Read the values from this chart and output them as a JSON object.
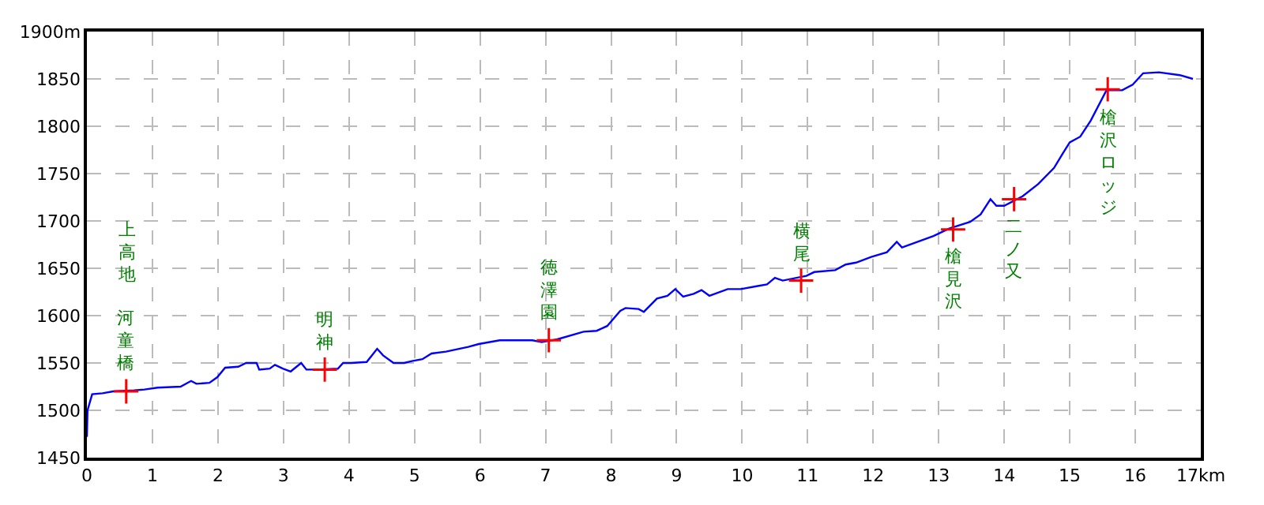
{
  "chart_data": {
    "type": "line",
    "x": [
      0,
      0.01,
      0.08,
      0.24,
      0.4,
      0.72,
      0.88,
      1.08,
      1.43,
      1.59,
      1.67,
      1.87,
      1.99,
      2.11,
      2.31,
      2.43,
      2.59,
      2.63,
      2.79,
      2.87,
      2.99,
      3.11,
      3.27,
      3.35,
      3.51,
      3.83,
      3.91,
      4.03,
      4.27,
      4.43,
      4.52,
      4.68,
      4.84,
      4.96,
      5.12,
      5.26,
      5.48,
      5.82,
      5.98,
      6.3,
      6.8,
      6.94,
      7.18,
      7.58,
      7.78,
      7.94,
      8.14,
      8.22,
      8.42,
      8.5,
      8.7,
      8.86,
      8.98,
      9.1,
      9.26,
      9.38,
      9.5,
      9.78,
      9.98,
      10.22,
      10.38,
      10.5,
      10.62,
      10.98,
      11.1,
      11.42,
      11.58,
      11.74,
      11.97,
      12.21,
      12.36,
      12.44,
      12.68,
      12.92,
      13.16,
      13.48,
      13.64,
      13.79,
      13.88,
      14.0,
      14.28,
      14.52,
      14.76,
      14.9,
      15.0,
      15.16,
      15.32,
      15.56,
      15.8,
      15.96,
      16.12,
      16.36,
      16.68,
      16.88
    ],
    "series": [
      {
        "color": "#0000ff",
        "values": [
          1472,
          1500,
          1517,
          1518,
          1520,
          1521,
          1522,
          1524,
          1525,
          1531,
          1528,
          1529,
          1535,
          1545,
          1546,
          1550,
          1550,
          1543,
          1544,
          1548,
          1544,
          1541,
          1550,
          1543,
          1543,
          1544,
          1550,
          1550,
          1551,
          1565,
          1558,
          1550,
          1550,
          1552,
          1554,
          1560,
          1562,
          1567,
          1570,
          1574,
          1574,
          1572,
          1575,
          1583,
          1584,
          1589,
          1605,
          1608,
          1607,
          1604,
          1618,
          1621,
          1628,
          1620,
          1623,
          1627,
          1621,
          1628,
          1628,
          1631,
          1633,
          1640,
          1637,
          1642,
          1646,
          1648,
          1654,
          1656,
          1662,
          1667,
          1678,
          1672,
          1678,
          1684,
          1692,
          1699,
          1707,
          1723,
          1716,
          1716,
          1726,
          1739,
          1756,
          1772,
          1783,
          1789,
          1806,
          1838,
          1838,
          1844,
          1856,
          1857,
          1854,
          1850
        ]
      }
    ],
    "xlim": [
      0,
      17
    ],
    "xticks": [
      0,
      1,
      2,
      3,
      4,
      5,
      6,
      7,
      8,
      9,
      10,
      11,
      12,
      13,
      14,
      15,
      16,
      {
        "value": 17,
        "label": "17km"
      }
    ],
    "ylim": [
      1450,
      1900
    ],
    "yticks": [
      1450,
      1500,
      1550,
      1600,
      1650,
      1700,
      1750,
      1800,
      1850,
      {
        "value": 1900,
        "label": "1900m"
      }
    ],
    "grid": true,
    "marker": "none",
    "line_style": "solid",
    "annotations": [
      {
        "text": "河童橋",
        "x": 0.6,
        "y": 1520
      },
      "上高地",
      {
        "text": "明神",
        "x": 3.63,
        "y": 1543
      },
      {
        "text": "徳澤園",
        "x": 7.05,
        "y": 1574
      },
      {
        "text": "横尾",
        "x": 10.9,
        "y": 1637
      },
      {
        "text": "槍見沢",
        "x": 13.22,
        "y": 1691
      },
      {
        "text": "二ノ又",
        "x": 14.15,
        "y": 1723
      },
      {
        "text": "槍沢ロッジ",
        "x": 15.58,
        "y": 1839
      }
    ]
  }
}
